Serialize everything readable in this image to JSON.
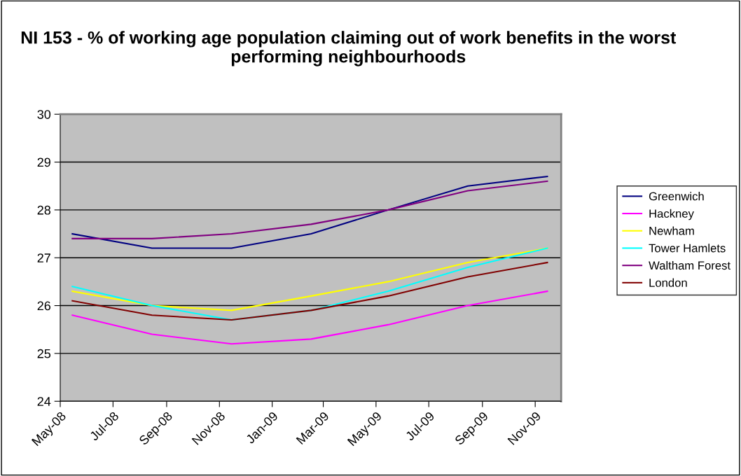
{
  "chart_data": {
    "type": "line",
    "title": "NI 153 - % of working age population claiming out of work benefits in the worst performing neighbourhoods",
    "x": [
      "2008-05-15",
      "2008-08-15",
      "2008-11-15",
      "2009-02-15",
      "2009-05-15",
      "2009-08-15",
      "2009-11-15"
    ],
    "series": [
      {
        "name": "Greenwich",
        "color": "#000080",
        "values": [
          27.5,
          27.2,
          27.2,
          27.5,
          28.0,
          28.5,
          28.7
        ]
      },
      {
        "name": "Hackney",
        "color": "#ff00ff",
        "values": [
          25.8,
          25.4,
          25.2,
          25.3,
          25.6,
          26.0,
          26.3
        ]
      },
      {
        "name": "Newham",
        "color": "#ffff00",
        "values": [
          26.3,
          26.0,
          25.9,
          26.2,
          26.5,
          26.9,
          27.2
        ]
      },
      {
        "name": "Tower Hamlets",
        "color": "#00ffff",
        "values": [
          26.4,
          26.0,
          25.7,
          25.9,
          26.3,
          26.8,
          27.2
        ]
      },
      {
        "name": "Waltham Forest",
        "color": "#800080",
        "values": [
          27.4,
          27.4,
          27.5,
          27.7,
          28.0,
          28.4,
          28.6
        ]
      },
      {
        "name": "London",
        "color": "#800000",
        "values": [
          26.1,
          25.8,
          25.7,
          25.9,
          26.2,
          26.6,
          26.9
        ]
      }
    ],
    "xlim": [
      "2008-05-01",
      "2009-12-01"
    ],
    "xticks": [
      {
        "value": "2008-05-01",
        "label": "May-08"
      },
      {
        "value": "2008-07-01",
        "label": "Jul-08"
      },
      {
        "value": "2008-09-01",
        "label": "Sep-08"
      },
      {
        "value": "2008-11-01",
        "label": "Nov-08"
      },
      {
        "value": "2009-01-01",
        "label": "Jan-09"
      },
      {
        "value": "2009-03-01",
        "label": "Mar-09"
      },
      {
        "value": "2009-05-01",
        "label": "May-09"
      },
      {
        "value": "2009-07-01",
        "label": "Jul-09"
      },
      {
        "value": "2009-09-01",
        "label": "Sep-09"
      },
      {
        "value": "2009-11-01",
        "label": "Nov-09"
      }
    ],
    "ylim": [
      24,
      30
    ],
    "yticks": [
      24,
      25,
      26,
      27,
      28,
      29,
      30
    ],
    "grid": "y",
    "legend": "right",
    "marker": "none",
    "line_style": "solid"
  }
}
